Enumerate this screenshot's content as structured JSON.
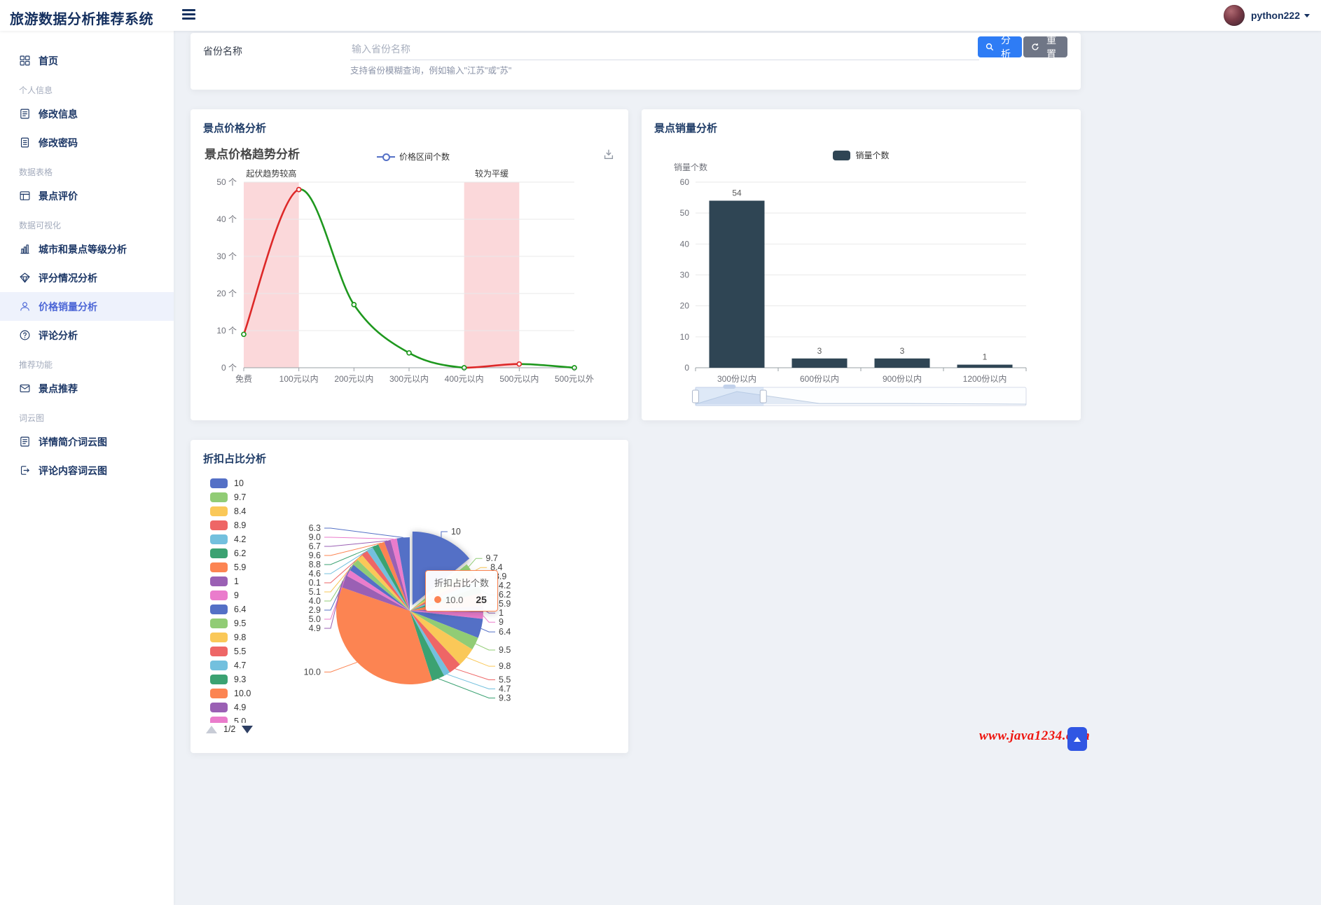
{
  "header": {
    "title": "旅游数据分析推荐系统",
    "username": "python222"
  },
  "sidebar": {
    "items": [
      {
        "type": "item",
        "icon": "grid",
        "label": "首页"
      },
      {
        "type": "section",
        "label": "个人信息"
      },
      {
        "type": "item",
        "icon": "doc",
        "label": "修改信息"
      },
      {
        "type": "item",
        "icon": "list",
        "label": "修改密码"
      },
      {
        "type": "section",
        "label": "数据表格"
      },
      {
        "type": "item",
        "icon": "table",
        "label": "景点评价"
      },
      {
        "type": "section",
        "label": "数据可视化"
      },
      {
        "type": "item",
        "icon": "bars",
        "label": "城市和景点等级分析"
      },
      {
        "type": "item",
        "icon": "diamond",
        "label": "评分情况分析"
      },
      {
        "type": "item",
        "icon": "person",
        "label": "价格销量分析",
        "active": true
      },
      {
        "type": "item",
        "icon": "question",
        "label": "评论分析"
      },
      {
        "type": "section",
        "label": "推荐功能"
      },
      {
        "type": "item",
        "icon": "mail",
        "label": "景点推荐"
      },
      {
        "type": "section",
        "label": "词云图"
      },
      {
        "type": "item",
        "icon": "doc",
        "label": "详情简介词云图"
      },
      {
        "type": "item",
        "icon": "exit",
        "label": "评论内容词云图"
      }
    ]
  },
  "search": {
    "label": "省份名称",
    "placeholder": "输入省份名称",
    "hint": "支持省份模糊查询，例如输入\"江苏\"或\"苏\"",
    "analyze_label": "分析",
    "reset_label": "重置"
  },
  "cards": {
    "price_title": "景点价格分析",
    "sales_title": "景点销量分析",
    "discount_title": "折扣占比分析"
  },
  "watermark": "www.java1234.com",
  "chart_data": [
    {
      "type": "line",
      "title": "景点价格趋势分析",
      "legend": [
        "价格区间个数"
      ],
      "legend_color": "#5470c6",
      "categories": [
        "免费",
        "100元以内",
        "200元以内",
        "300元以内",
        "400元以内",
        "500元以内",
        "500元以外"
      ],
      "values": [
        9,
        48,
        17,
        4,
        0,
        1,
        0
      ],
      "ylim": [
        0,
        50
      ],
      "yticks": [
        0,
        10,
        20,
        30,
        40,
        50
      ],
      "tick_suffix": " 个",
      "segment_colors": [
        "#dd2828",
        "#1e981e",
        "#1e981e",
        "#1e981e",
        "#dd2828",
        "#1e981e"
      ],
      "marker_colors": [
        "#1e981e",
        "#dd2828",
        "#1e981e",
        "#1e981e",
        "#1e981e",
        "#dd2828",
        "#1e981e"
      ],
      "area_color": "#f7a8ac",
      "mark_areas": [
        {
          "from": 0,
          "to": 1,
          "label": "起伏趋势较高"
        },
        {
          "from": 4,
          "to": 5,
          "label": "较为平缓"
        }
      ]
    },
    {
      "type": "bar",
      "title": "景点销量分析",
      "legend": [
        "销量个数"
      ],
      "ylabel": "销量个数",
      "categories": [
        "300份以内",
        "600份以内",
        "900份以内",
        "1200份以内"
      ],
      "values": [
        54,
        3,
        3,
        1
      ],
      "ylim": [
        0,
        60
      ],
      "yticks": [
        0,
        10,
        20,
        30,
        40,
        50,
        60
      ],
      "bar_color": "#2f4554",
      "datazoom": {
        "selected_from": 0,
        "selected_to": 0.205
      }
    },
    {
      "type": "pie",
      "title": "折扣占比分析",
      "series_name": "折扣占比个数",
      "palette": [
        "#5470c6",
        "#91cc75",
        "#fac858",
        "#ee6666",
        "#73c0de",
        "#3ba272",
        "#fc8452",
        "#9a60b4",
        "#ea7ccc"
      ],
      "slices": [
        {
          "name": "10",
          "value": 10
        },
        {
          "name": "9.7",
          "value": 1
        },
        {
          "name": "8.4",
          "value": 1
        },
        {
          "name": "8.9",
          "value": 1
        },
        {
          "name": "4.2",
          "value": 1
        },
        {
          "name": "6.2",
          "value": 1
        },
        {
          "name": "5.9",
          "value": 2
        },
        {
          "name": "1",
          "value": 1
        },
        {
          "name": "9",
          "value": 1
        },
        {
          "name": "6.4",
          "value": 3
        },
        {
          "name": "9.5",
          "value": 2
        },
        {
          "name": "9.8",
          "value": 3
        },
        {
          "name": "5.5",
          "value": 2
        },
        {
          "name": "4.7",
          "value": 1
        },
        {
          "name": "9.3",
          "value": 2
        },
        {
          "name": "10.0",
          "value": 25
        },
        {
          "name": "4.9",
          "value": 2
        },
        {
          "name": "5.0",
          "value": 1
        },
        {
          "name": "2.9",
          "value": 1
        },
        {
          "name": "4.0",
          "value": 1
        },
        {
          "name": "5.1",
          "value": 1
        },
        {
          "name": "0.1",
          "value": 1
        },
        {
          "name": "4.6",
          "value": 1
        },
        {
          "name": "8.8",
          "value": 1
        },
        {
          "name": "9.6",
          "value": 1
        },
        {
          "name": "6.7",
          "value": 1
        },
        {
          "name": "9.0",
          "value": 1
        },
        {
          "name": "6.3",
          "value": 2
        }
      ],
      "hover_index": 15,
      "legend_visible_count": 18,
      "legend_page": "1/2",
      "tooltip": {
        "title": "折扣占比个数",
        "item": "10.0",
        "value": "25",
        "color": "#fc8452"
      }
    }
  ]
}
